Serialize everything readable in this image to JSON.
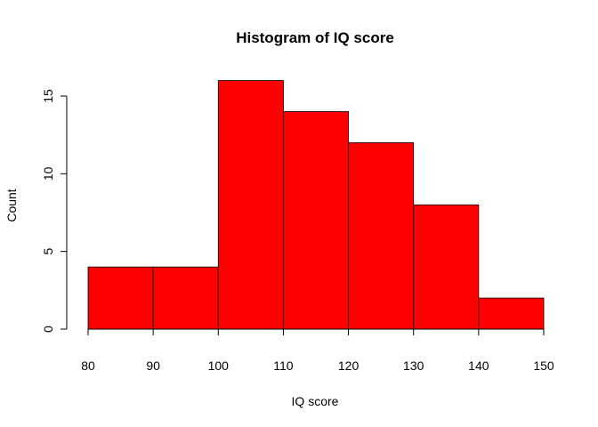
{
  "chart_data": {
    "type": "bar",
    "title": "Histogram of IQ score",
    "xlabel": "IQ score",
    "ylabel": "Count",
    "bins": [
      {
        "start": 80,
        "end": 90,
        "count": 4
      },
      {
        "start": 90,
        "end": 100,
        "count": 4
      },
      {
        "start": 100,
        "end": 110,
        "count": 16
      },
      {
        "start": 110,
        "end": 120,
        "count": 14
      },
      {
        "start": 120,
        "end": 130,
        "count": 12
      },
      {
        "start": 130,
        "end": 140,
        "count": 8
      },
      {
        "start": 140,
        "end": 150,
        "count": 2
      }
    ],
    "xlim": [
      80,
      150
    ],
    "ylim": [
      0,
      16
    ],
    "x_ticks": [
      80,
      90,
      100,
      110,
      120,
      130,
      140,
      150
    ],
    "y_ticks": [
      0,
      5,
      10,
      15
    ],
    "bar_color": "#ff0000",
    "grid": false,
    "legend": "none"
  }
}
